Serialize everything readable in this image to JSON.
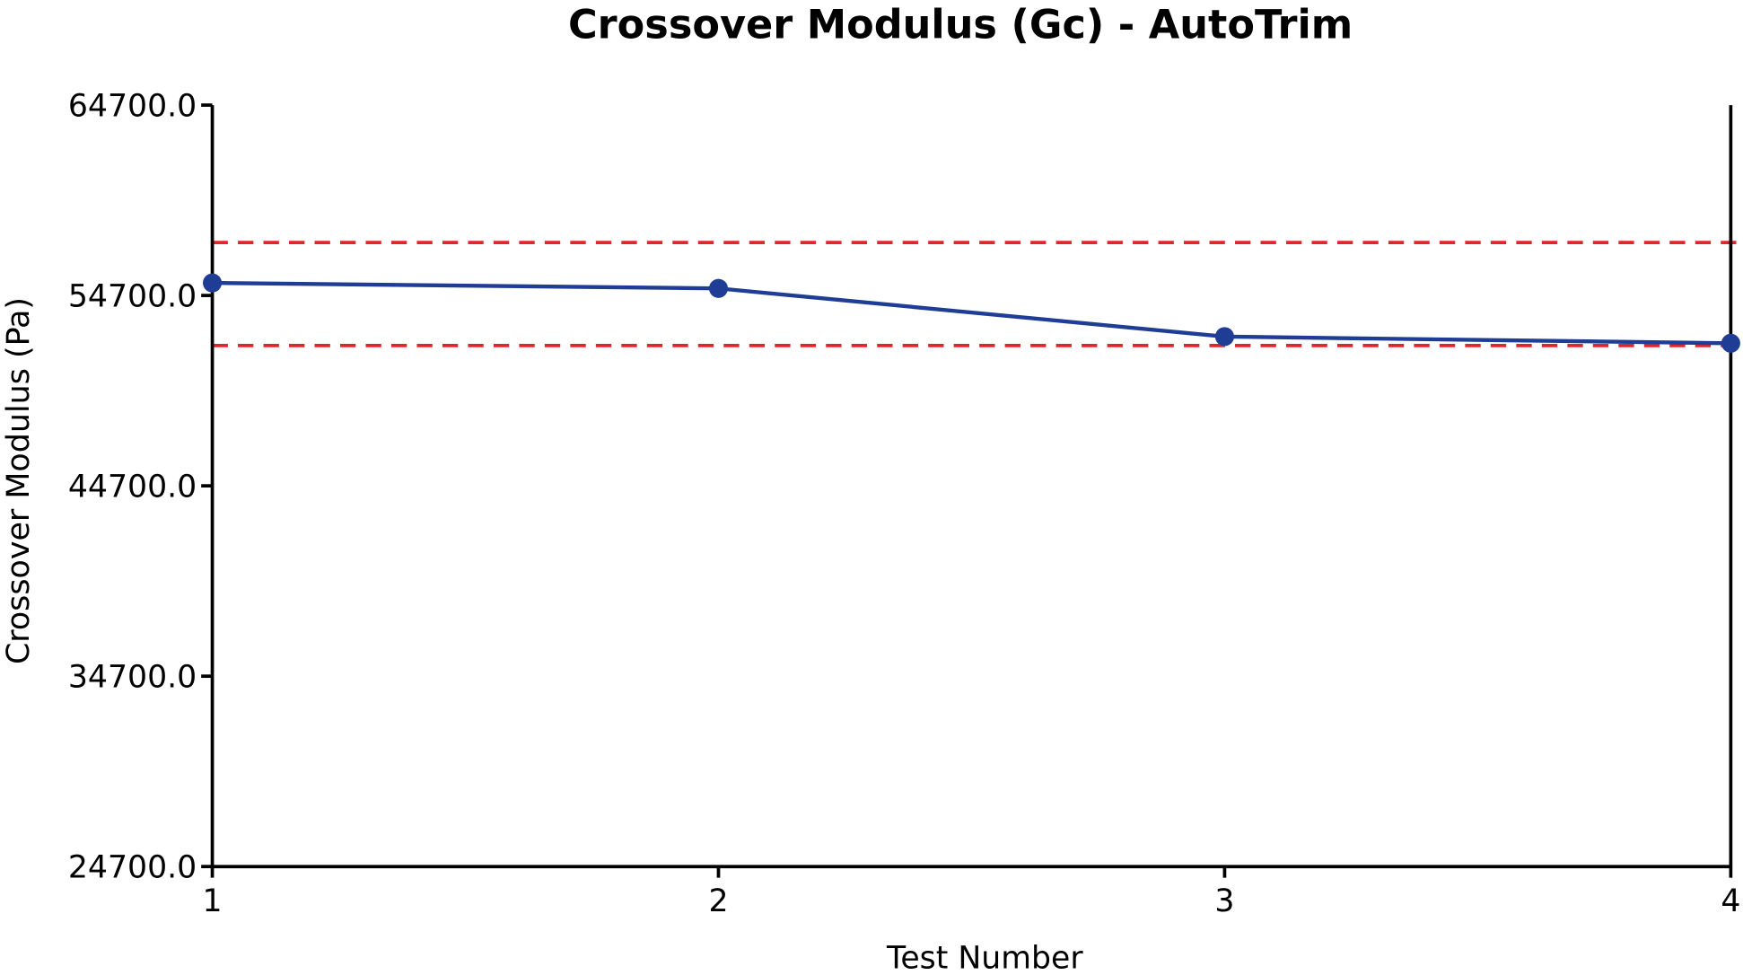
{
  "chart_data": {
    "type": "line",
    "title": "Crossover Modulus (Gc) - AutoTrim",
    "xlabel": "Test Number",
    "ylabel": "Crossover Modulus (Pa)",
    "x": [
      1,
      2,
      3,
      4
    ],
    "x_tick_labels": [
      "1",
      "2",
      "3",
      "4"
    ],
    "xlim": [
      1,
      4
    ],
    "ylim": [
      24700,
      64700
    ],
    "y_tick_labels": [
      "24700.0",
      "34700.0",
      "44700.0",
      "54700.0",
      "64700.0"
    ],
    "y_ticks": [
      24700,
      34700,
      44700,
      54700,
      64700
    ],
    "series": [
      {
        "values": [
          55360,
          55070,
          52540,
          52190
        ],
        "color": "#1f3d95"
      }
    ],
    "reference_lines": [
      {
        "y": 57480,
        "style": "dashed",
        "color": "#e0262b"
      },
      {
        "y": 52070,
        "style": "dashed",
        "color": "#e0262b"
      }
    ],
    "grid": false,
    "legend": "none"
  }
}
